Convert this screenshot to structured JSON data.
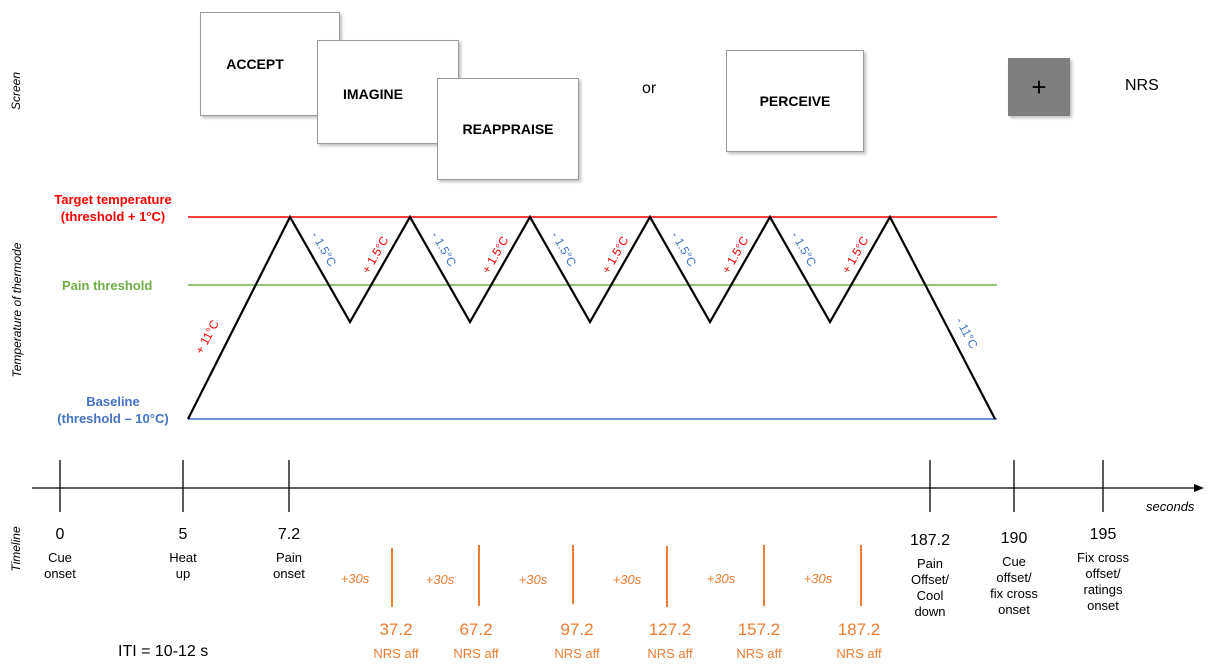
{
  "row_labels": {
    "screen": "Screen",
    "temperature": "Temperature of thermode",
    "timeline": "Timeline"
  },
  "screen": {
    "cards": [
      "ACCEPT",
      "IMAGINE",
      "REAPPRAISE",
      "PERCEIVE"
    ],
    "or_text": "or",
    "fixation_symbol": "+",
    "nrs_text": "NRS"
  },
  "temperature": {
    "target_label_line1": "Target temperature",
    "target_label_line2": "(threshold + 1°C)",
    "pain_threshold_label": "Pain threshold",
    "baseline_label_line1": "Baseline",
    "baseline_label_line2": "(threshold – 10°C)",
    "slope_up_initial": "+ 11°C",
    "slope_down_final": "- 11°C",
    "slope_up": "+ 1.5°C",
    "slope_down": "- 1.5°C",
    "colors": {
      "target": "#ff0000",
      "threshold": "#70ad47",
      "baseline": "#4472c4"
    }
  },
  "timeline": {
    "unit_label": "seconds",
    "ticks": [
      {
        "value": "0",
        "desc": [
          "Cue",
          "onset"
        ]
      },
      {
        "value": "5",
        "desc": [
          "Heat",
          "up"
        ]
      },
      {
        "value": "7.2",
        "desc": [
          "Pain",
          "onset"
        ]
      },
      {
        "value": "187.2",
        "desc": [
          "Pain",
          "Offset/",
          "Cool",
          "down"
        ]
      },
      {
        "value": "190",
        "desc": [
          "Cue",
          "offset/",
          "fix cross",
          "onset"
        ]
      },
      {
        "value": "195",
        "desc": [
          "Fix cross",
          "offset/",
          "ratings",
          "onset"
        ]
      }
    ],
    "interval_label": "+30s",
    "nrs_ratings": [
      {
        "value": "37.2",
        "label": "NRS aff"
      },
      {
        "value": "67.2",
        "label": "NRS aff"
      },
      {
        "value": "97.2",
        "label": "NRS aff"
      },
      {
        "value": "127.2",
        "label": "NRS aff"
      },
      {
        "value": "157.2",
        "label": "NRS aff"
      },
      {
        "value": "187.2",
        "label": "NRS aff"
      }
    ],
    "iti_label": "ITI = 10-12 s"
  }
}
